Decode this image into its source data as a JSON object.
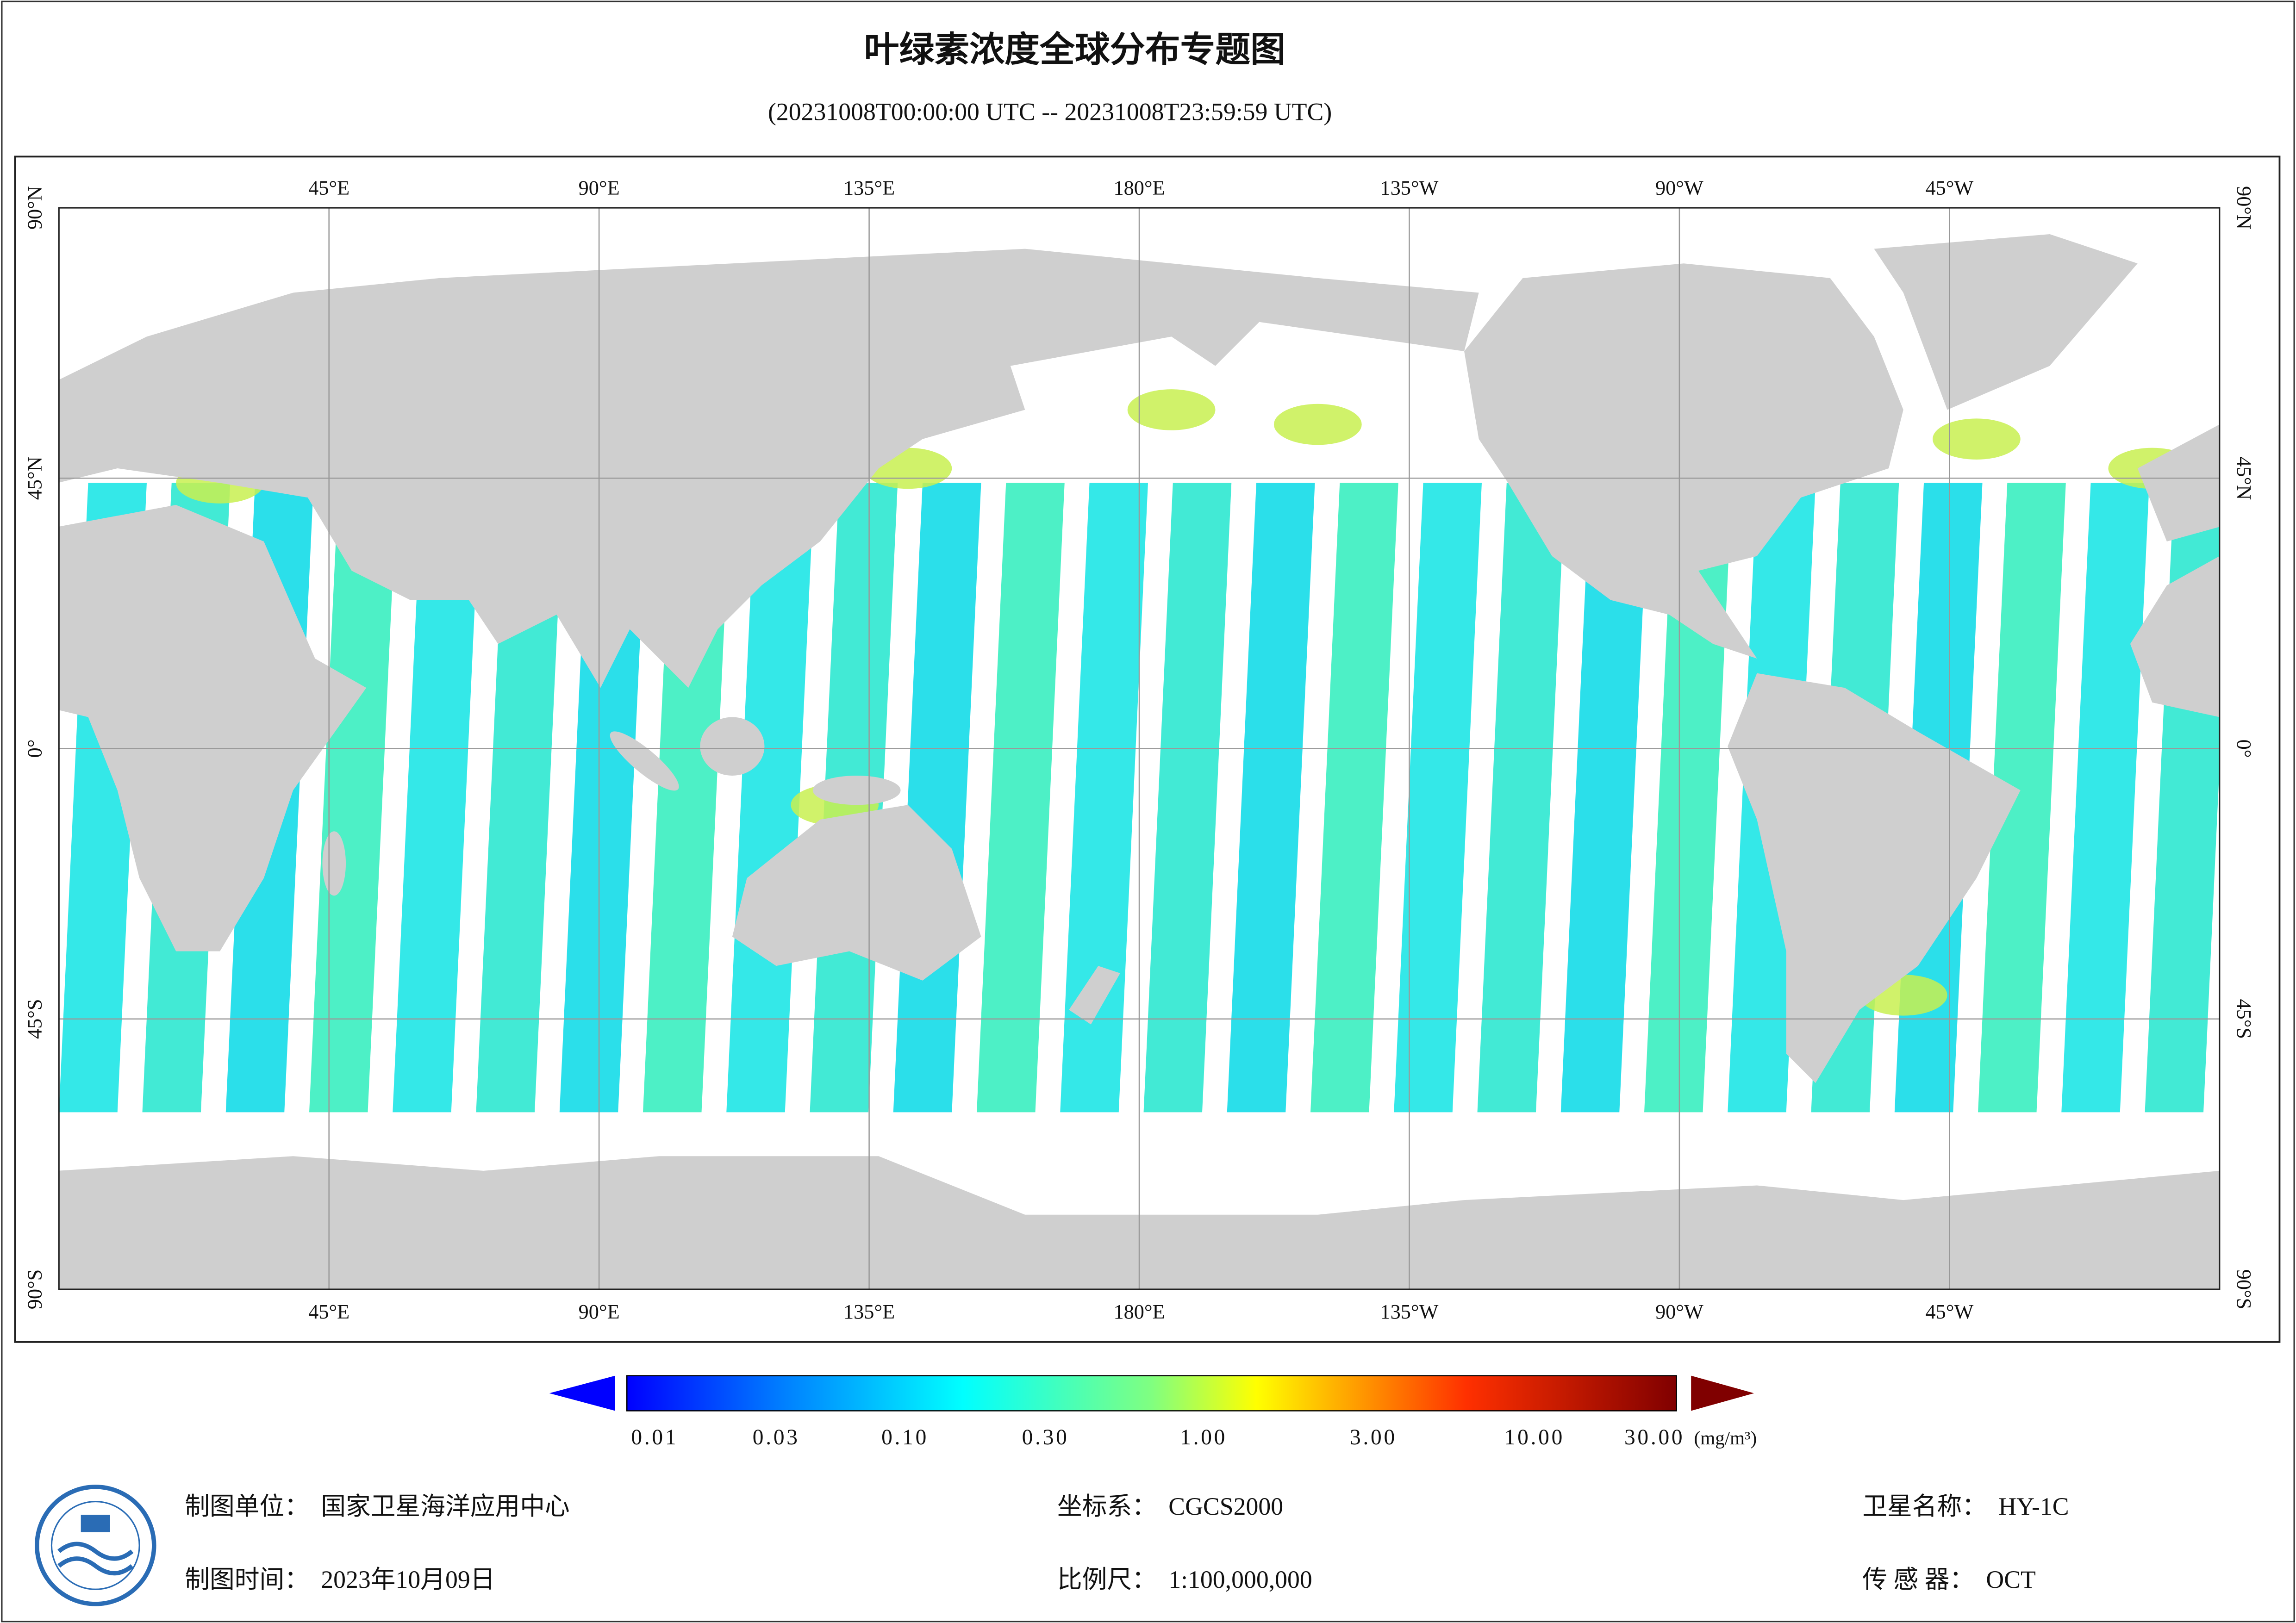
{
  "title": "叶绿素浓度全球分布专题图",
  "subtitle": "(20231008T00:00:00 UTC -- 20231008T23:59:59 UTC)",
  "map": {
    "lon_labels": [
      "45°E",
      "90°E",
      "135°E",
      "180°E",
      "135°W",
      "90°W",
      "45°W"
    ],
    "lat_labels": [
      "90°N",
      "45°N",
      "0°",
      "45°S",
      "90°S"
    ]
  },
  "colorbar": {
    "labels": [
      "0.01",
      "0.03",
      "0.10",
      "0.30",
      "1.00",
      "3.00",
      "10.00",
      "30.00"
    ],
    "unit": "(mg/m³)"
  },
  "footer": {
    "unit": {
      "label": "制图单位：",
      "value": "国家卫星海洋应用中心"
    },
    "time": {
      "label": "制图时间：",
      "value": "2023年10月09日"
    },
    "crs": {
      "label": "坐标系：",
      "value": "CGCS2000"
    },
    "scale": {
      "label": "比例尺：",
      "value": "1:100,000,000"
    },
    "satellite": {
      "label": "卫星名称：",
      "value": "HY-1C"
    },
    "sensor": {
      "label": "传 感 器：",
      "value": "OCT"
    }
  }
}
